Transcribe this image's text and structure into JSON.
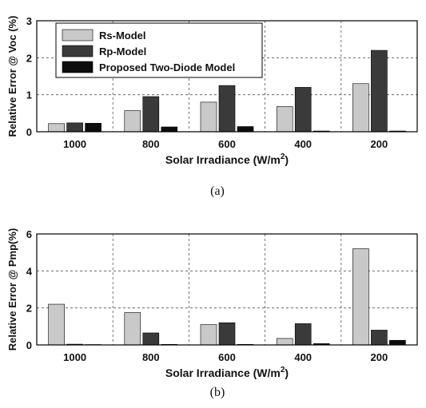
{
  "colors": {
    "Rs-Model": "#c9c9c9",
    "Rp-Model": "#3a3a3a",
    "Proposed Two-Diode Model": "#0d0d0d"
  },
  "chart_data": [
    {
      "type": "bar",
      "caption": "(a)",
      "xlabel": "Solar Irradiance (W/m",
      "xlabel_sup": "2",
      "xlabel_close": ")",
      "ylabel": "Relative Error @ Voc (%)",
      "categories": [
        "1000",
        "800",
        "600",
        "400",
        "200"
      ],
      "ylim": [
        0,
        3
      ],
      "yticks": [
        "0",
        "1",
        "2",
        "3"
      ],
      "grid": true,
      "legend_position": "top-left",
      "series": [
        {
          "name": "Rs-Model",
          "values": [
            0.22,
            0.57,
            0.8,
            0.68,
            1.3
          ]
        },
        {
          "name": "Rp-Model",
          "values": [
            0.24,
            0.95,
            1.25,
            1.2,
            2.2
          ]
        },
        {
          "name": "Proposed Two-Diode Model",
          "values": [
            0.23,
            0.13,
            0.14,
            0.02,
            0.02
          ]
        }
      ]
    },
    {
      "type": "bar",
      "caption": "(b)",
      "xlabel": "Solar Irradiance (W/m",
      "xlabel_sup": "2",
      "xlabel_close": ")",
      "ylabel": "Relative Error @ Pmp(%)",
      "categories": [
        "1000",
        "800",
        "600",
        "400",
        "200"
      ],
      "ylim": [
        0,
        6
      ],
      "yticks": [
        "0",
        "2",
        "4",
        "6"
      ],
      "grid": true,
      "series": [
        {
          "name": "Rs-Model",
          "values": [
            2.2,
            1.75,
            1.1,
            0.35,
            5.2
          ]
        },
        {
          "name": "Rp-Model",
          "values": [
            0.04,
            0.65,
            1.2,
            1.15,
            0.8
          ]
        },
        {
          "name": "Proposed Two-Diode Model",
          "values": [
            0.02,
            0.03,
            0.03,
            0.07,
            0.25
          ]
        }
      ]
    }
  ]
}
